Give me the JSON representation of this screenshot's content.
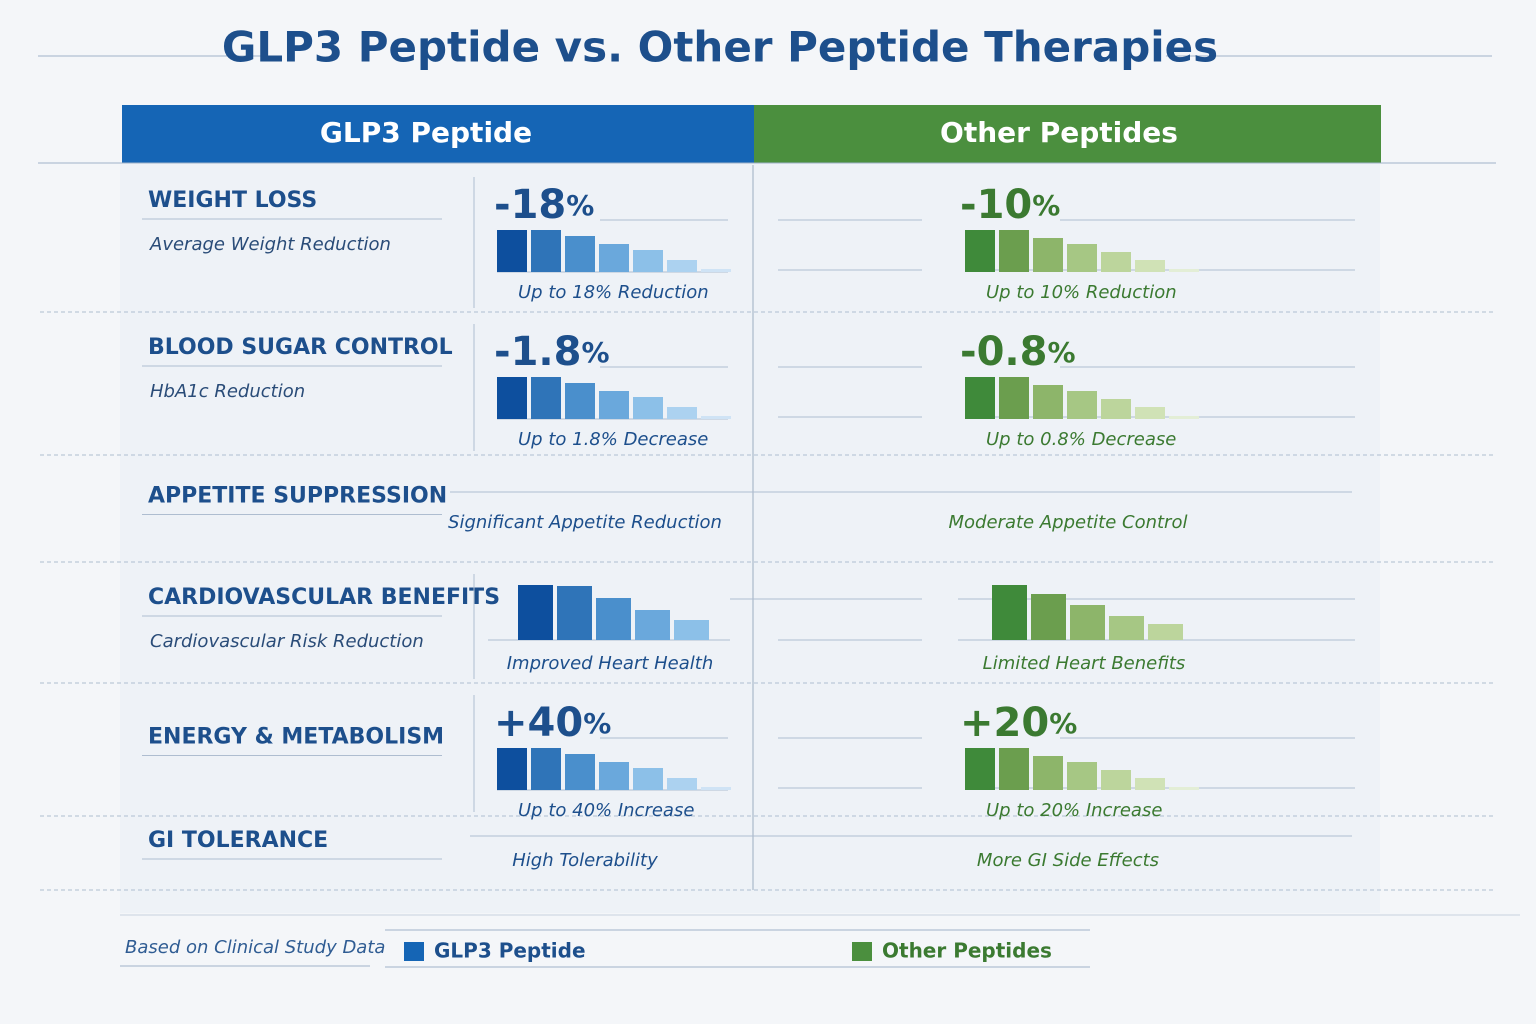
{
  "title": "GLP3 Peptide vs. Other Peptide Therapies",
  "columns": [
    "GLP3 Peptide",
    "Other Peptides"
  ],
  "rows": [
    {
      "title": "WEIGHT LOSS",
      "subtitle": "Average Weight Reduction",
      "glp3": {
        "headline": "-18%",
        "caption": "Up to 18% Reduction"
      },
      "other": {
        "headline": "-10%",
        "caption": "Up to 10% Reduction"
      }
    },
    {
      "title": "BLOOD SUGAR CONTROL",
      "subtitle": "HbA1c Reduction",
      "glp3": {
        "headline": "-1.8%",
        "caption": "Up to 1.8% Decrease"
      },
      "other": {
        "headline": "-0.8%",
        "caption": "Up to 0.8% Decrease"
      }
    },
    {
      "title": "APPETITE SUPPRESSION",
      "glp3": {
        "caption": "Significant Appetite Reduction"
      },
      "other": {
        "caption": "Moderate Appetite Control"
      }
    },
    {
      "title": "CARDIOVASCULAR BENEFITS",
      "subtitle": "Cardiovascular Risk Reduction",
      "glp3": {
        "caption": "Improved Heart Health"
      },
      "other": {
        "caption": "Limited Heart Benefits"
      }
    },
    {
      "title": "ENERGY & METABOLISM",
      "glp3": {
        "headline": "+40%",
        "caption": "Up to 40% Increase"
      },
      "other": {
        "headline": "+20%",
        "caption": "Up to 20% Increase"
      }
    },
    {
      "title": "GI TOLERANCE",
      "glp3": {
        "caption": "High Tolerability"
      },
      "other": {
        "caption": "More GI Side Effects"
      }
    }
  ],
  "footer": {
    "note": "Based on Clinical Study Data",
    "legend": [
      "GLP3 Peptide",
      "Other Peptides"
    ]
  }
}
